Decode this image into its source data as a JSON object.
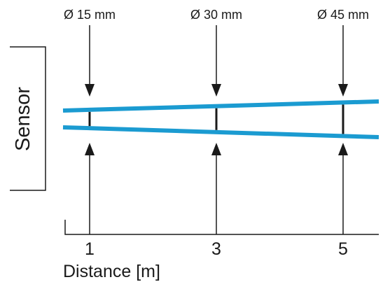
{
  "sensor_label": "Sensor",
  "axis": {
    "xlabel": "Distance [m]",
    "ticks": [
      "1",
      "3",
      "5"
    ]
  },
  "measurements": [
    {
      "distance_m": 1,
      "label": "Ø 15 mm"
    },
    {
      "distance_m": 3,
      "label": "Ø 30 mm"
    },
    {
      "distance_m": 5,
      "label": "Ø 45 mm"
    }
  ],
  "colors": {
    "beam": "#1b9bd1",
    "ink": "#1a1a1a"
  }
}
